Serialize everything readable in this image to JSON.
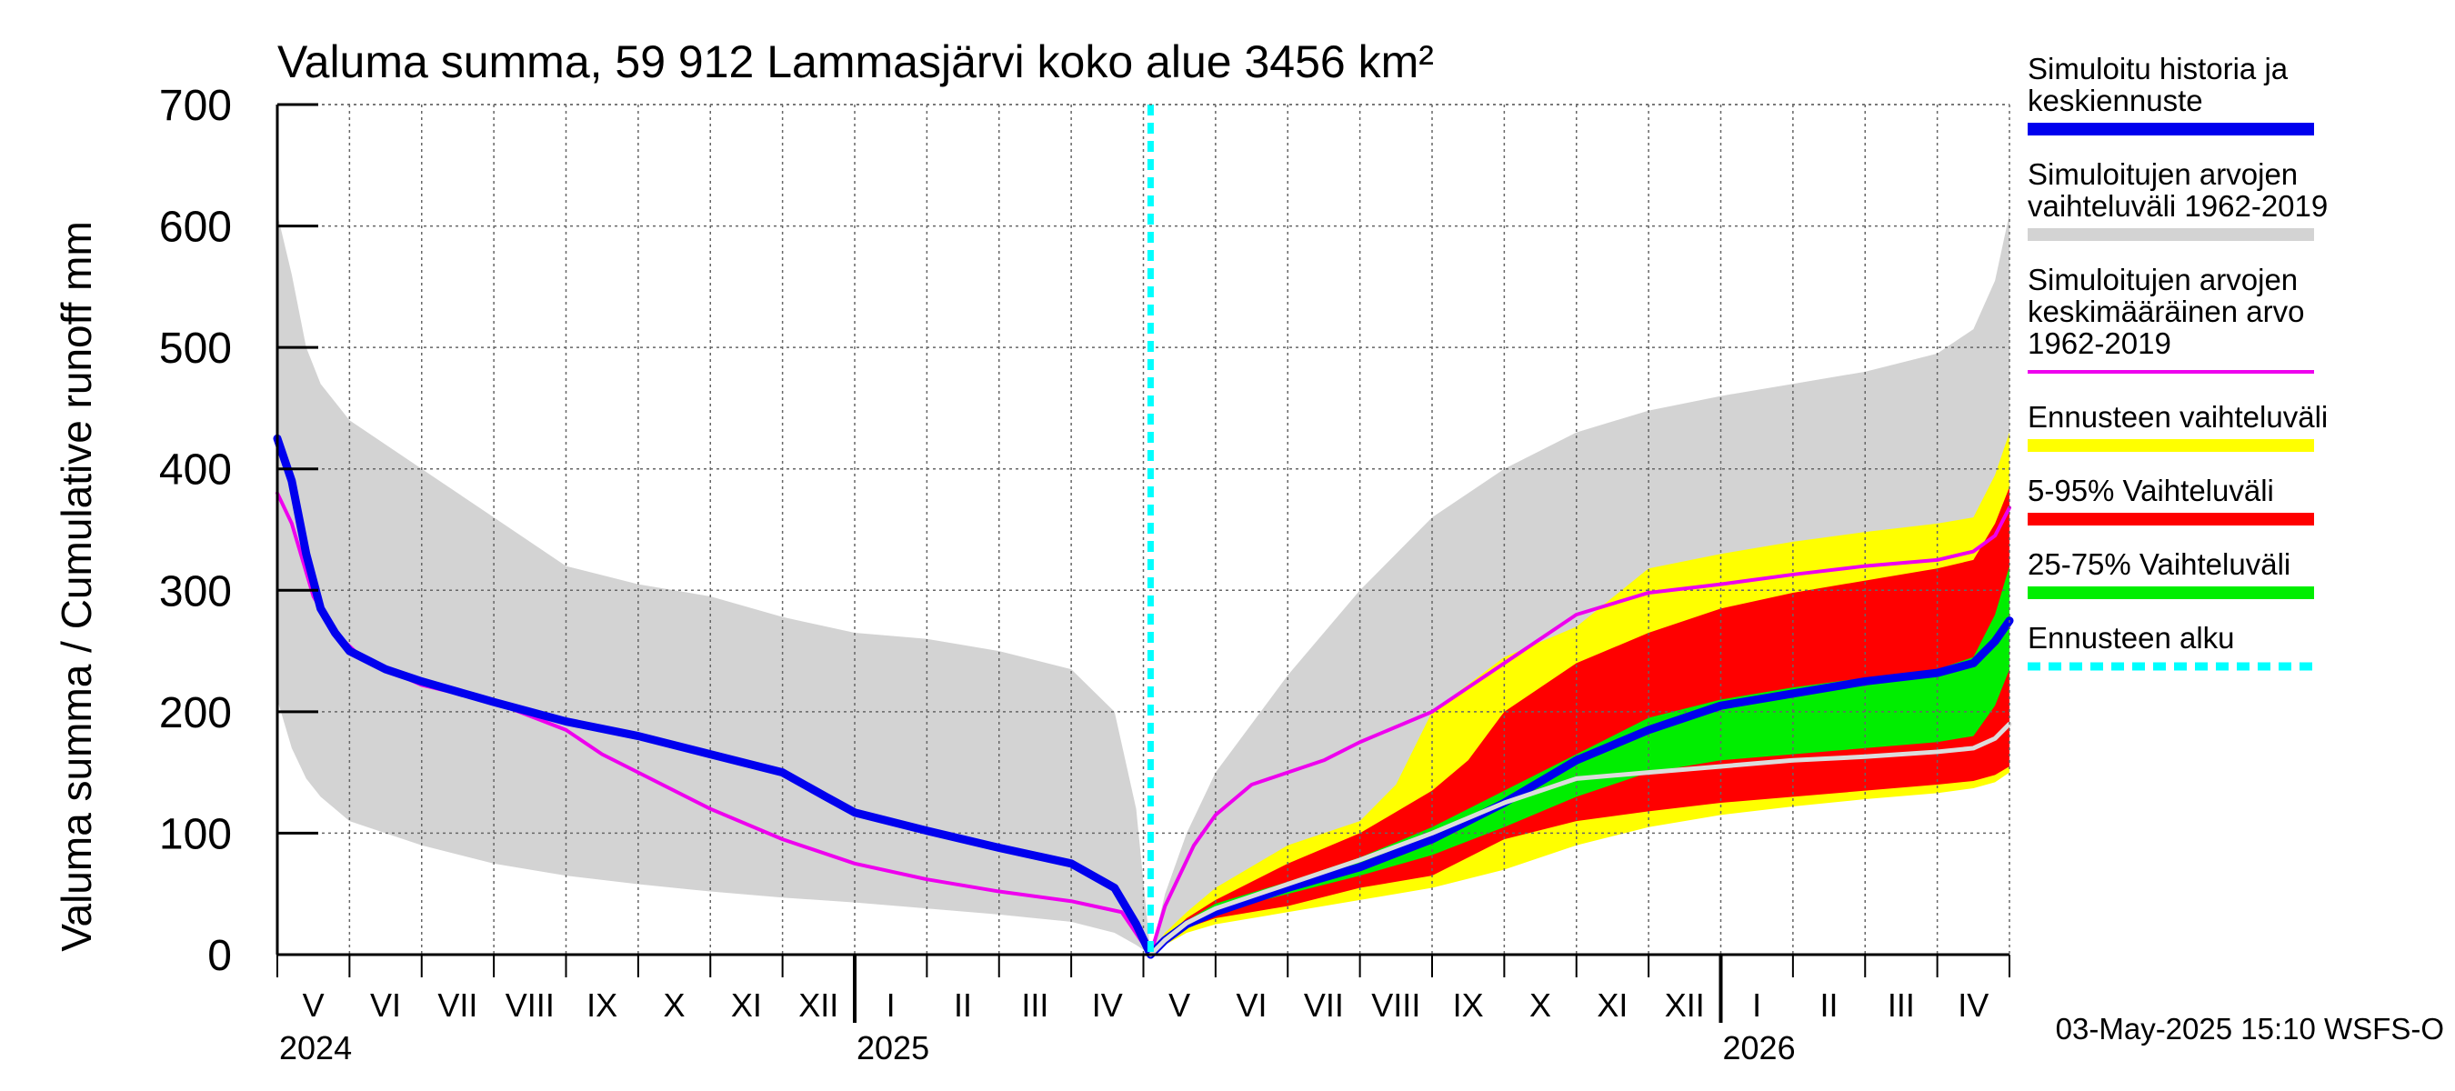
{
  "chart_data": {
    "type": "area",
    "title": "Valuma summa, 59 912 Lammasjärvi koko alue 3456 km²",
    "ylabel": "Valuma summa / Cumulative runoff    mm",
    "ylim": [
      0,
      700
    ],
    "yticks": [
      0,
      100,
      200,
      300,
      400,
      500,
      600,
      700
    ],
    "x_unit": "months since 2024-04-01",
    "xlim": [
      1,
      25
    ],
    "forecast_start": 13.1,
    "month_labels": [
      {
        "label": "V",
        "x": 1.5
      },
      {
        "label": "VI",
        "x": 2.5
      },
      {
        "label": "VII",
        "x": 3.5
      },
      {
        "label": "VIII",
        "x": 4.5
      },
      {
        "label": "IX",
        "x": 5.5
      },
      {
        "label": "X",
        "x": 6.5
      },
      {
        "label": "XI",
        "x": 7.5
      },
      {
        "label": "XII",
        "x": 8.5
      },
      {
        "label": "I",
        "x": 9.5
      },
      {
        "label": "II",
        "x": 10.5
      },
      {
        "label": "III",
        "x": 11.5
      },
      {
        "label": "IV",
        "x": 12.5
      },
      {
        "label": "V",
        "x": 13.5
      },
      {
        "label": "VI",
        "x": 14.5
      },
      {
        "label": "VII",
        "x": 15.5
      },
      {
        "label": "VIII",
        "x": 16.5
      },
      {
        "label": "IX",
        "x": 17.5
      },
      {
        "label": "X",
        "x": 18.5
      },
      {
        "label": "XI",
        "x": 19.5
      },
      {
        "label": "XII",
        "x": 20.5
      },
      {
        "label": "I",
        "x": 21.5
      },
      {
        "label": "II",
        "x": 22.5
      },
      {
        "label": "III",
        "x": 23.5
      },
      {
        "label": "IV",
        "x": 24.5
      }
    ],
    "year_labels": [
      {
        "label": "2024",
        "x": 1
      },
      {
        "label": "2025",
        "x": 9
      },
      {
        "label": "2026",
        "x": 21
      }
    ],
    "year_boundaries": [
      9,
      21
    ],
    "legend": [
      {
        "lines": [
          "Simuloitu historia ja",
          "keskiennuste"
        ],
        "color": "#0000ee",
        "style": "thick"
      },
      {
        "lines": [
          "Simuloitujen arvojen",
          "vaihteluväli 1962-2019"
        ],
        "color": "#d3d3d3",
        "style": "thick"
      },
      {
        "lines": [
          "Simuloitujen arvojen",
          "keskimääräinen arvo",
          "   1962-2019"
        ],
        "color": "#ee00ee",
        "style": "thin"
      },
      {
        "lines": [
          "Ennusteen vaihteluväli"
        ],
        "color": "#ffff00",
        "style": "thick"
      },
      {
        "lines": [
          "5-95% Vaihteluväli"
        ],
        "color": "#ff0000",
        "style": "thick"
      },
      {
        "lines": [
          "25-75% Vaihteluväli"
        ],
        "color": "#00ee00",
        "style": "thick"
      },
      {
        "lines": [
          "Ennusteen alku"
        ],
        "color": "#00ffff",
        "style": "dashed"
      }
    ],
    "series": [
      {
        "name": "Simuloitujen arvojen vaihteluväli 1962-2019",
        "kind": "band",
        "color": "#d3d3d3",
        "x": [
          1.0,
          1.2,
          1.4,
          1.6,
          2.0,
          3.0,
          4.0,
          5.0,
          6.0,
          7.0,
          8.0,
          9.0,
          10.0,
          11.0,
          12.0,
          12.6,
          12.9,
          13.1,
          13.3,
          13.6,
          14.0,
          15.0,
          16.0,
          17.0,
          18.0,
          19.0,
          20.0,
          21.0,
          22.0,
          23.0,
          24.0,
          24.5,
          24.8,
          25.0
        ],
        "lower": [
          210,
          170,
          145,
          130,
          110,
          90,
          75,
          65,
          58,
          52,
          47,
          43,
          38,
          33,
          27,
          18,
          8,
          0,
          8,
          30,
          55,
          75,
          90,
          103,
          113,
          120,
          125,
          130,
          134,
          138,
          142,
          145,
          150,
          155
        ],
        "upper": [
          610,
          560,
          500,
          470,
          440,
          400,
          360,
          320,
          305,
          295,
          278,
          265,
          260,
          250,
          235,
          200,
          120,
          0,
          50,
          100,
          150,
          230,
          300,
          360,
          400,
          430,
          448,
          460,
          470,
          480,
          495,
          515,
          555,
          610
        ]
      },
      {
        "name": "Ennusteen vaihteluväli",
        "kind": "band",
        "color": "#ffff00",
        "x": [
          13.1,
          13.3,
          13.6,
          14.0,
          15.0,
          16.0,
          16.5,
          17.0,
          18.0,
          19.0,
          20.0,
          21.0,
          22.0,
          23.0,
          24.0,
          24.5,
          24.8,
          25.0
        ],
        "lower": [
          0,
          8,
          18,
          25,
          35,
          45,
          50,
          55,
          70,
          90,
          105,
          115,
          122,
          128,
          133,
          137,
          142,
          150
        ],
        "upper": [
          0,
          18,
          35,
          55,
          90,
          110,
          140,
          200,
          245,
          270,
          318,
          330,
          340,
          348,
          355,
          360,
          395,
          430
        ]
      },
      {
        "name": "5-95% Vaihteluväli",
        "kind": "band",
        "color": "#ff0000",
        "x": [
          13.1,
          13.3,
          13.6,
          14.0,
          15.0,
          16.0,
          17.0,
          17.5,
          18.0,
          19.0,
          20.0,
          21.0,
          22.0,
          23.0,
          24.0,
          24.5,
          24.8,
          25.0
        ],
        "lower": [
          0,
          10,
          22,
          30,
          40,
          55,
          65,
          80,
          95,
          110,
          118,
          125,
          130,
          135,
          140,
          143,
          148,
          155
        ],
        "upper": [
          0,
          14,
          30,
          45,
          75,
          100,
          135,
          160,
          200,
          240,
          265,
          285,
          298,
          308,
          318,
          325,
          355,
          385
        ]
      },
      {
        "name": "25-75% Vaihteluväli",
        "kind": "band",
        "color": "#00ee00",
        "x": [
          13.1,
          13.3,
          13.6,
          14.0,
          15.0,
          16.0,
          17.0,
          18.0,
          19.0,
          20.0,
          21.0,
          22.0,
          23.0,
          24.0,
          24.5,
          24.8,
          25.0
        ],
        "lower": [
          0,
          12,
          25,
          35,
          50,
          65,
          82,
          105,
          130,
          150,
          160,
          165,
          170,
          175,
          180,
          205,
          235
        ],
        "upper": [
          0,
          13,
          28,
          42,
          60,
          80,
          105,
          135,
          165,
          195,
          210,
          220,
          228,
          235,
          245,
          280,
          320
        ]
      },
      {
        "name": "Simuloitujen arvojen keskimääräinen arvo 1962-2019",
        "kind": "line",
        "color": "#ee00ee",
        "width": 4,
        "x": [
          1.0,
          1.2,
          1.5,
          1.8,
          2.2,
          3.0,
          4.0,
          5.0,
          5.5,
          6.0,
          7.0,
          8.0,
          9.0,
          10.0,
          11.0,
          12.0,
          12.7,
          13.1,
          13.3,
          13.7,
          14.0,
          14.5,
          15.0,
          15.5,
          16.0,
          17.0,
          18.0,
          19.0,
          20.0,
          21.0,
          22.0,
          23.0,
          24.0,
          24.5,
          24.8,
          25.0
        ],
        "y": [
          380,
          355,
          295,
          265,
          243,
          222,
          208,
          185,
          165,
          150,
          120,
          95,
          75,
          62,
          52,
          44,
          35,
          0,
          40,
          90,
          115,
          140,
          150,
          160,
          175,
          200,
          240,
          280,
          298,
          305,
          313,
          320,
          325,
          332,
          345,
          368
        ]
      },
      {
        "name": "Simuloitu historia ja keskiennuste",
        "kind": "line",
        "color": "#0000ee",
        "width": 9,
        "x": [
          1.0,
          1.2,
          1.4,
          1.6,
          1.8,
          2.0,
          2.5,
          3.0,
          4.0,
          5.0,
          6.0,
          7.0,
          8.0,
          8.6,
          9.0,
          10.0,
          11.0,
          12.0,
          12.6,
          12.9,
          13.1,
          13.3,
          13.6,
          14.0,
          15.0,
          16.0,
          17.0,
          18.0,
          19.0,
          20.0,
          21.0,
          22.0,
          23.0,
          24.0,
          24.5,
          24.8,
          25.0
        ],
        "y": [
          425,
          390,
          330,
          285,
          265,
          250,
          235,
          225,
          208,
          192,
          180,
          165,
          150,
          130,
          117,
          102,
          88,
          75,
          55,
          25,
          0,
          12,
          25,
          35,
          55,
          72,
          95,
          125,
          160,
          185,
          205,
          215,
          225,
          232,
          240,
          258,
          275
        ]
      },
      {
        "name": "Median (grey)",
        "kind": "line",
        "color": "#dcdcdc",
        "width": 5,
        "x": [
          13.1,
          13.3,
          13.6,
          14.0,
          15.0,
          16.0,
          17.0,
          18.0,
          19.0,
          20.0,
          21.0,
          22.0,
          23.0,
          24.0,
          24.5,
          24.8,
          25.0
        ],
        "y": [
          0,
          12,
          26,
          38,
          58,
          78,
          100,
          125,
          145,
          150,
          155,
          160,
          163,
          167,
          170,
          178,
          190
        ]
      }
    ]
  },
  "timestamp": "03-May-2025 15:10 WSFS-O"
}
